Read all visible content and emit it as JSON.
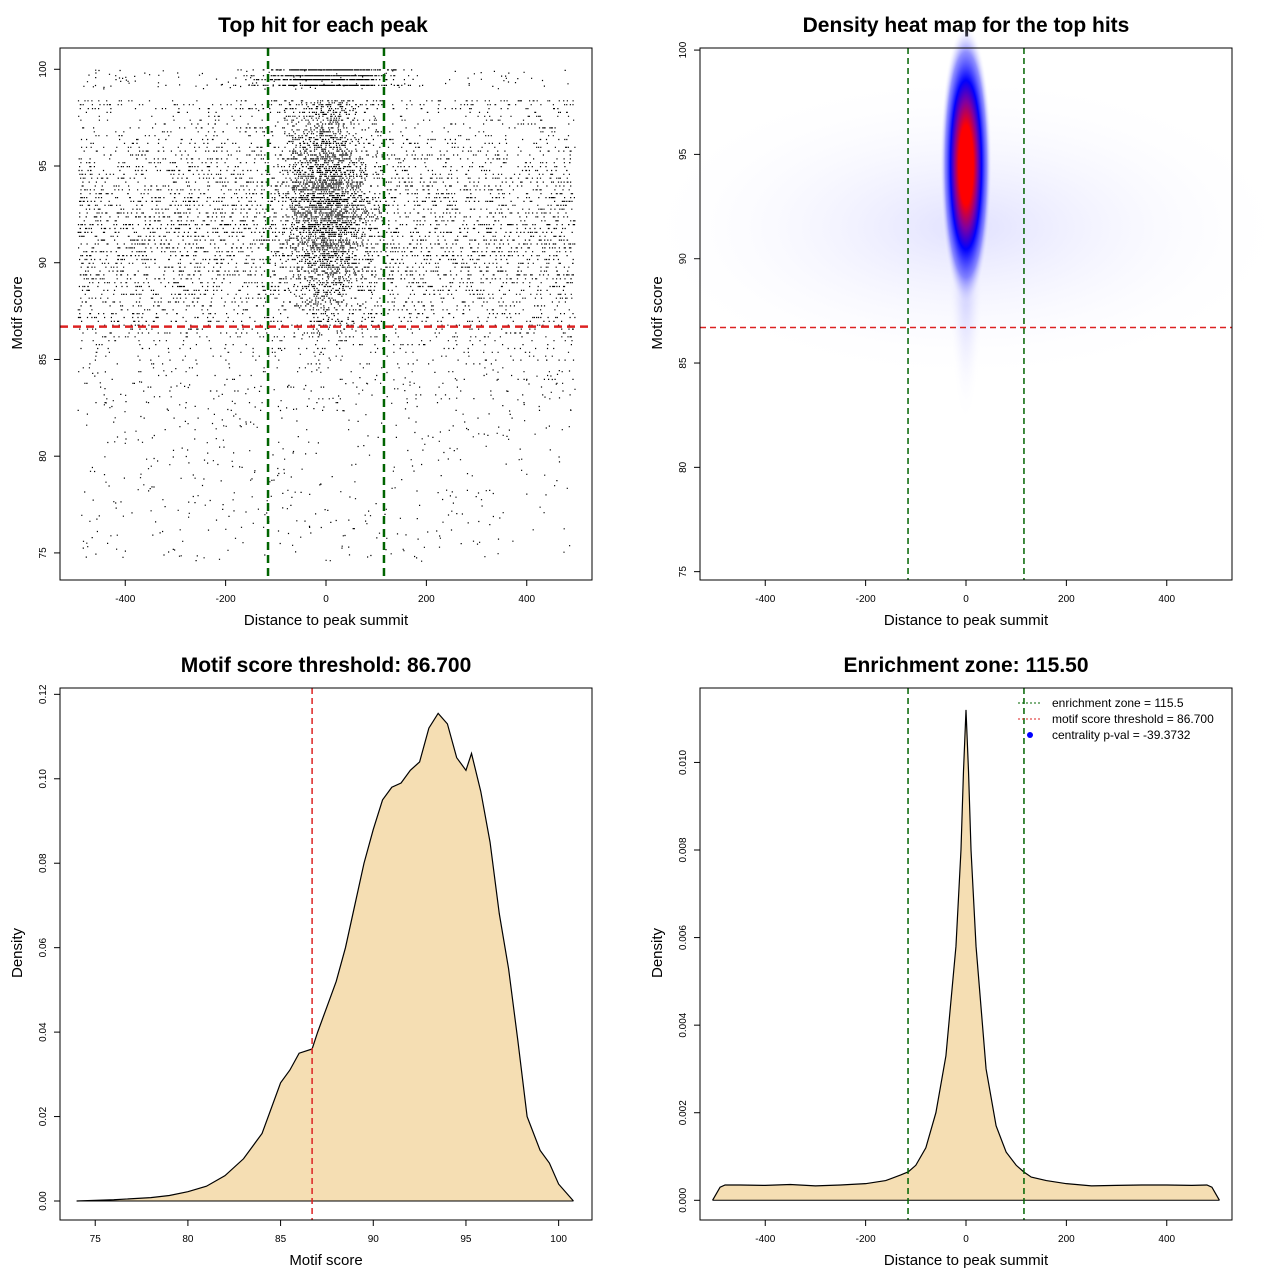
{
  "chart_data": [
    {
      "type": "scatter",
      "title": "Top hit for each peak",
      "xlabel": "Distance to peak summit",
      "ylabel": "Motif score",
      "xlim": [
        -530,
        530
      ],
      "ylim": [
        73.6,
        101.1
      ],
      "xticks": [
        -400,
        -200,
        0,
        200,
        400
      ],
      "yticks": [
        75,
        80,
        85,
        90,
        95,
        100
      ],
      "grid": false,
      "point_color": "#000000",
      "points_distribution": {
        "x_range": [
          -495,
          495
        ],
        "y_range": [
          74.6,
          100
        ],
        "central_cluster_x": [
          -115.5,
          115.5
        ],
        "central_cluster_y": [
          84.5,
          98.5
        ]
      },
      "hlines": [
        {
          "y": 86.7,
          "color": "#dd2222",
          "style": "dashed"
        }
      ],
      "vlines": [
        {
          "x": -115.5,
          "color": "#006400",
          "style": "dashed"
        },
        {
          "x": 115.5,
          "color": "#006400",
          "style": "dashed"
        }
      ]
    },
    {
      "type": "heatmap",
      "title": "Density heat map for the top hits",
      "xlabel": "Distance to peak summit",
      "ylabel": "Motif score",
      "xlim": [
        -530,
        530
      ],
      "ylim": [
        74.6,
        100.1
      ],
      "xticks": [
        -400,
        -200,
        0,
        200,
        400
      ],
      "yticks": [
        75,
        80,
        85,
        90,
        95,
        100
      ],
      "colorscale": [
        "#ffffff",
        "#0000ff",
        "#ff0000"
      ],
      "density_peak": {
        "x": 0,
        "y": 94.5
      },
      "hlines": [
        {
          "y": 86.7,
          "color": "#dd2222",
          "style": "dashed"
        }
      ],
      "vlines": [
        {
          "x": -115.5,
          "color": "#006400",
          "style": "dashed"
        },
        {
          "x": 115.5,
          "color": "#006400",
          "style": "dashed"
        }
      ]
    },
    {
      "type": "area",
      "title": "Motif score threshold: 86.700",
      "xlabel": "Motif score",
      "ylabel": "Density",
      "xlim": [
        73.1,
        101.8
      ],
      "ylim": [
        -0.0045,
        0.1215
      ],
      "xticks": [
        75,
        80,
        85,
        90,
        95,
        100
      ],
      "yticks": [
        0.0,
        0.02,
        0.04,
        0.06,
        0.08,
        0.1,
        0.12
      ],
      "ytick_labels": [
        "0.00",
        "0.02",
        "0.04",
        "0.06",
        "0.08",
        "0.10",
        "0.12"
      ],
      "fill": "#f5deb3",
      "x": [
        74,
        76,
        78,
        79,
        80,
        81,
        82,
        83,
        84,
        85,
        85.5,
        86,
        86.7,
        87,
        87.5,
        88,
        88.5,
        89,
        89.5,
        90,
        90.5,
        91,
        91.5,
        92,
        92.5,
        93,
        93.5,
        94,
        94.5,
        95,
        95.3,
        95.8,
        96.3,
        96.8,
        97.3,
        97.8,
        98.3,
        99,
        99.5,
        100,
        100.8
      ],
      "y": [
        0,
        0.0003,
        0.0008,
        0.0013,
        0.0022,
        0.0035,
        0.006,
        0.01,
        0.016,
        0.028,
        0.031,
        0.035,
        0.036,
        0.04,
        0.046,
        0.052,
        0.06,
        0.07,
        0.08,
        0.088,
        0.095,
        0.098,
        0.099,
        0.102,
        0.104,
        0.112,
        0.1155,
        0.113,
        0.105,
        0.102,
        0.106,
        0.097,
        0.085,
        0.068,
        0.055,
        0.038,
        0.02,
        0.012,
        0.009,
        0.004,
        0
      ]
    },
    {
      "type": "area",
      "title": "Enrichment zone: 115.50",
      "xlabel": "Distance to peak summit",
      "ylabel": "Density",
      "xlim": [
        -530,
        530
      ],
      "ylim": [
        -0.00045,
        0.0117
      ],
      "xticks": [
        -400,
        -200,
        0,
        200,
        400
      ],
      "yticks": [
        0.0,
        0.002,
        0.004,
        0.006,
        0.008,
        0.01
      ],
      "ytick_labels": [
        "0.000",
        "0.002",
        "0.004",
        "0.006",
        "0.008",
        "0.010"
      ],
      "fill": "#f5deb3",
      "x": [
        -505,
        -490,
        -480,
        -450,
        -400,
        -350,
        -300,
        -250,
        -200,
        -160,
        -130,
        -115,
        -100,
        -80,
        -60,
        -40,
        -20,
        -10,
        -5,
        0,
        5,
        10,
        20,
        40,
        60,
        80,
        100,
        115,
        130,
        160,
        200,
        250,
        300,
        350,
        400,
        450,
        480,
        490,
        505
      ],
      "y": [
        0,
        0.0003,
        0.00035,
        0.00035,
        0.00034,
        0.00036,
        0.00033,
        0.00035,
        0.00038,
        0.00045,
        0.00058,
        0.00065,
        0.0008,
        0.0012,
        0.002,
        0.0033,
        0.0058,
        0.008,
        0.0098,
        0.0112,
        0.0098,
        0.008,
        0.0058,
        0.003,
        0.0017,
        0.0011,
        0.0008,
        0.00065,
        0.00053,
        0.00045,
        0.00038,
        0.00033,
        0.00034,
        0.00035,
        0.00035,
        0.00034,
        0.00035,
        0.0003,
        0
      ],
      "vlines": [
        {
          "x": -115.5,
          "color": "#006400",
          "style": "dashed"
        },
        {
          "x": 115.5,
          "color": "#006400",
          "style": "dashed"
        }
      ],
      "legend": {
        "position": "top-right",
        "entries": [
          {
            "label": "enrichment zone = 115.5",
            "color": "#006400",
            "symbol": "dotted-line"
          },
          {
            "label": "motif score threshold = 86.700",
            "color": "#dd2222",
            "symbol": "dotted-line"
          },
          {
            "label": "centrality p-val = -39.3732",
            "color": "#0000ff",
            "symbol": "dot"
          }
        ]
      }
    }
  ]
}
